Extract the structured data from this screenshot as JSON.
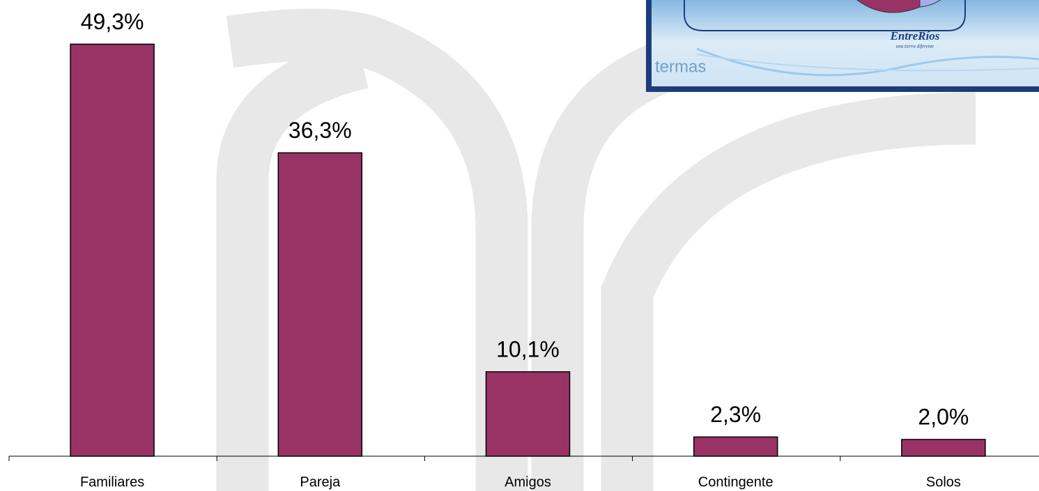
{
  "chart_data": {
    "type": "bar",
    "categories": [
      "Familiares",
      "Pareja",
      "Amigos",
      "Contingente",
      "Solos"
    ],
    "values": [
      49.3,
      36.3,
      10.1,
      2.3,
      2.0
    ],
    "value_labels": [
      "49,3%",
      "36,3%",
      "10,1%",
      "2,3%",
      "2,0%"
    ],
    "color": "#993366",
    "ylim": [
      0,
      50
    ]
  },
  "logo": {
    "brand": "EntreRíos",
    "tagline": "una tierra diferente",
    "word": "termas"
  }
}
